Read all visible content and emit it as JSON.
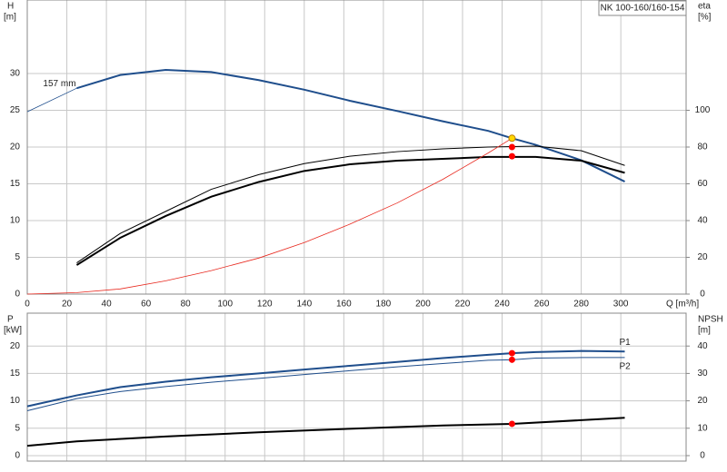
{
  "chart_data": [
    {
      "type": "line",
      "badge": "NK 100-160/160-154",
      "y_label": "H",
      "y_unit": "[m]",
      "y2_label": "eta",
      "y2_unit": "[%]",
      "x_label": "Q [m³/h]",
      "annotations": [
        {
          "text": "157 mm",
          "x": 8,
          "y": 28.6
        }
      ],
      "xlim": [
        0,
        333
      ],
      "xticks": [
        0,
        20,
        40,
        60,
        80,
        100,
        120,
        140,
        160,
        180,
        200,
        220,
        240,
        260,
        280,
        300
      ],
      "ylim": [
        0,
        40
      ],
      "yticks": [
        0,
        5,
        10,
        15,
        20,
        25,
        30
      ],
      "y2lim": [
        0,
        160
      ],
      "y2ticks": [
        0,
        20,
        40,
        60,
        80,
        100
      ],
      "grid": true,
      "series": [
        {
          "color": "#1f4e8c",
          "width": 0.8,
          "axis": "y",
          "x": [
            0,
            25
          ],
          "values": [
            24.8,
            28
          ]
        },
        {
          "color": "#1f4e8c",
          "width": 2,
          "axis": "y",
          "x": [
            25,
            47,
            70,
            93,
            117,
            140,
            163,
            187,
            210,
            233,
            245,
            257,
            280,
            302
          ],
          "values": [
            28,
            29.8,
            30.5,
            30.2,
            29.1,
            27.8,
            26.3,
            24.9,
            23.5,
            22.2,
            21.2,
            20.3,
            18.2,
            15.3
          ]
        },
        {
          "color": "#000000",
          "width": 1,
          "axis": "y2",
          "x": [
            25,
            47,
            70,
            93,
            117,
            140,
            163,
            187,
            210,
            233,
            257,
            280,
            302
          ],
          "values": [
            17,
            33,
            45,
            57,
            65,
            71,
            75,
            77.5,
            79,
            80,
            80.5,
            78,
            70
          ]
        },
        {
          "color": "#000000",
          "width": 2,
          "axis": "y2",
          "x": [
            25,
            47,
            70,
            93,
            117,
            140,
            163,
            187,
            210,
            233,
            257,
            280,
            302
          ],
          "values": [
            15.8,
            30.6,
            42.5,
            53,
            61,
            67,
            70.6,
            72.6,
            73.6,
            74.6,
            74.6,
            72.6,
            66
          ]
        },
        {
          "color": "#e8281e",
          "width": 0.8,
          "axis": "y",
          "x": [
            0,
            25,
            47,
            70,
            93,
            117,
            140,
            163,
            187,
            210,
            233,
            245
          ],
          "values": [
            0,
            0.2,
            0.7,
            1.8,
            3.2,
            4.9,
            7.0,
            9.5,
            12.4,
            15.6,
            19.2,
            21.2
          ]
        }
      ],
      "points": [
        {
          "x": 245,
          "y": 80,
          "axis": "y2",
          "color": "#ff0000"
        },
        {
          "x": 245,
          "y": 75,
          "axis": "y2",
          "color": "#ff0000"
        },
        {
          "x": 245,
          "y": 21.2,
          "axis": "y",
          "color": "#ffd700"
        }
      ]
    },
    {
      "type": "line",
      "y_label": "P",
      "y_unit": "[kW]",
      "y2_label": "NPSH",
      "y2_unit": "[m]",
      "xlim": [
        0,
        333
      ],
      "ylim": [
        -1,
        26
      ],
      "yticks": [
        0,
        5,
        10,
        15,
        20
      ],
      "y2lim": [
        -2,
        52
      ],
      "y2ticks": [
        0,
        10,
        20,
        30,
        40
      ],
      "grid": true,
      "series": [
        {
          "name": "P1",
          "color": "#1f4e8c",
          "width": 2,
          "axis": "y",
          "x": [
            0,
            25,
            47,
            70,
            93,
            117,
            140,
            163,
            187,
            210,
            233,
            245,
            257,
            280,
            302
          ],
          "values": [
            9,
            11,
            12.5,
            13.5,
            14.3,
            15,
            15.7,
            16.4,
            17.1,
            17.8,
            18.4,
            18.7,
            18.9,
            19.1,
            19.0
          ]
        },
        {
          "name": "P2",
          "color": "#1f4e8c",
          "width": 1,
          "axis": "y",
          "x": [
            0,
            25,
            47,
            70,
            93,
            117,
            140,
            163,
            187,
            210,
            233,
            245,
            257,
            280,
            302
          ],
          "values": [
            8.2,
            10.4,
            11.7,
            12.6,
            13.4,
            14.1,
            14.8,
            15.5,
            16.2,
            16.8,
            17.4,
            17.5,
            17.8,
            17.9,
            17.9
          ]
        },
        {
          "color": "#000000",
          "width": 2,
          "axis": "y2",
          "x": [
            0,
            25,
            70,
            117,
            163,
            210,
            245,
            302
          ],
          "values": [
            3.6,
            5.2,
            7,
            8.5,
            9.8,
            11,
            11.6,
            13.8
          ]
        }
      ],
      "points": [
        {
          "x": 245,
          "y": 18.7,
          "axis": "y",
          "color": "#ff0000"
        },
        {
          "x": 245,
          "y": 17.5,
          "axis": "y",
          "color": "#ff0000"
        },
        {
          "x": 245,
          "y": 11.6,
          "axis": "y2",
          "color": "#ff0000"
        }
      ]
    }
  ]
}
